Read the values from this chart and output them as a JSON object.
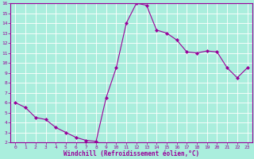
{
  "x": [
    0,
    1,
    2,
    3,
    4,
    5,
    6,
    7,
    8,
    9,
    10,
    11,
    12,
    13,
    14,
    15,
    16,
    17,
    18,
    19,
    20,
    21,
    22,
    23
  ],
  "y": [
    6.0,
    5.5,
    4.5,
    4.3,
    3.5,
    3.0,
    2.5,
    2.2,
    2.1,
    6.5,
    9.5,
    14.0,
    16.0,
    15.8,
    13.3,
    13.0,
    12.3,
    11.1,
    11.0,
    11.2,
    11.1,
    9.5,
    8.5,
    9.5
  ],
  "line_color": "#990099",
  "marker": "D",
  "marker_size": 2.0,
  "bg_color": "#aaeedd",
  "grid_color": "#cceeee",
  "xlabel": "Windchill (Refroidissement éolien,°C)",
  "xlabel_color": "#990099",
  "xlim_min": -0.5,
  "xlim_max": 23.5,
  "ylim_min": 2,
  "ylim_max": 16,
  "xtick_labels": [
    "0",
    "1",
    "2",
    "3",
    "4",
    "5",
    "6",
    "7",
    "8",
    "9",
    "10",
    "11",
    "12",
    "13",
    "14",
    "15",
    "16",
    "17",
    "18",
    "19",
    "20",
    "21",
    "22",
    "23"
  ],
  "ytick_labels": [
    "2",
    "3",
    "4",
    "5",
    "6",
    "7",
    "8",
    "9",
    "10",
    "11",
    "12",
    "13",
    "14",
    "15",
    "16"
  ],
  "tick_fontsize": 4.5,
  "xlabel_fontsize": 5.5,
  "linewidth": 0.8
}
